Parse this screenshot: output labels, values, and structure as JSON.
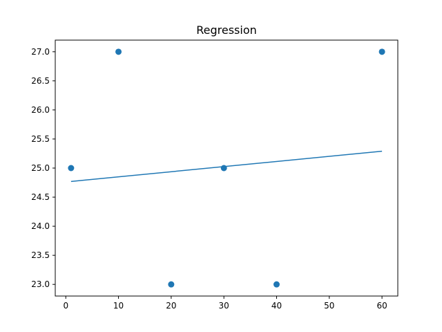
{
  "chart_data": {
    "type": "scatter",
    "title": "Regression",
    "xlabel": "",
    "ylabel": "",
    "xlim": [
      -2.0,
      63.0
    ],
    "ylim": [
      22.8,
      27.2
    ],
    "x_ticks": [
      0,
      10,
      20,
      30,
      40,
      50,
      60
    ],
    "x_tick_labels": [
      "0",
      "10",
      "20",
      "30",
      "40",
      "50",
      "60"
    ],
    "y_ticks": [
      23.0,
      23.5,
      24.0,
      24.5,
      25.0,
      25.5,
      26.0,
      26.5,
      27.0
    ],
    "y_tick_labels": [
      "23.0",
      "23.5",
      "24.0",
      "24.5",
      "25.0",
      "25.5",
      "26.0",
      "26.5",
      "27.0"
    ],
    "grid": false,
    "series": [
      {
        "kind": "scatter",
        "color": "#1f77b4",
        "points": [
          {
            "x": 1,
            "y": 25.0
          },
          {
            "x": 10,
            "y": 27.0
          },
          {
            "x": 20,
            "y": 23.0
          },
          {
            "x": 30,
            "y": 25.0
          },
          {
            "x": 40,
            "y": 23.0
          },
          {
            "x": 60,
            "y": 27.0
          }
        ]
      },
      {
        "kind": "line",
        "color": "#1f77b4",
        "points": [
          {
            "x": 1,
            "y": 24.77
          },
          {
            "x": 60,
            "y": 25.29
          }
        ]
      }
    ]
  }
}
